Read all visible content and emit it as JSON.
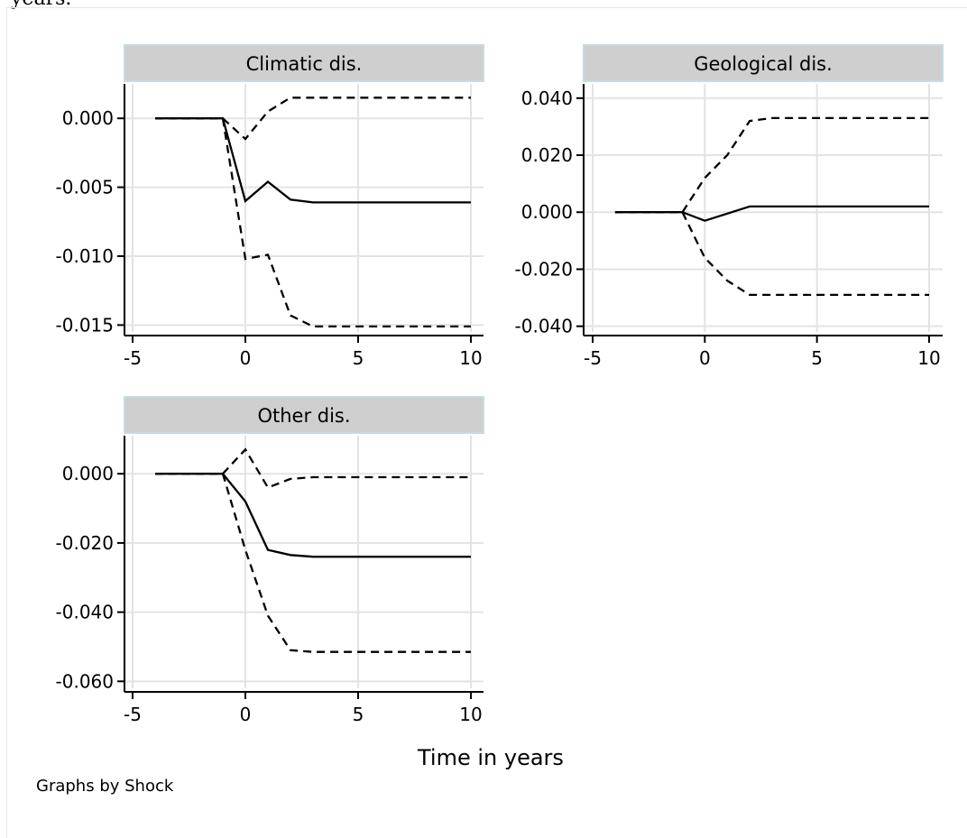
{
  "caption_fragment": "years.",
  "note": "Graphs by Shock",
  "chart_data": {
    "type": "line",
    "xlabel": "Time in years",
    "xlim": [
      -5,
      10
    ],
    "xticks": [
      -5,
      0,
      5,
      10
    ],
    "x": [
      -4,
      -3,
      -2,
      -1,
      0,
      1,
      2,
      3,
      4,
      5,
      6,
      7,
      8,
      9,
      10
    ],
    "panels": [
      {
        "title": "Climatic dis.",
        "ylim": [
          -0.0155,
          0.0025
        ],
        "yticks": [
          0.0,
          -0.005,
          -0.01,
          -0.015
        ],
        "ytick_labels": [
          "0.000",
          "-0.005",
          "-0.010",
          "-0.015"
        ],
        "series": [
          {
            "values": [
              0,
              0,
              0,
              0,
              -0.006,
              -0.0046,
              -0.0059,
              -0.0061,
              -0.0061,
              -0.0061,
              -0.0061,
              -0.0061,
              -0.0061,
              -0.0061,
              -0.0061
            ]
          },
          {
            "values": [
              0,
              0,
              0,
              0,
              -0.0015,
              0.0005,
              0.0015,
              0.0015,
              0.0015,
              0.0015,
              0.0015,
              0.0015,
              0.0015,
              0.0015,
              0.0015
            ]
          },
          {
            "values": [
              0,
              0,
              0,
              0,
              -0.0102,
              -0.0099,
              -0.0143,
              -0.0151,
              -0.0151,
              -0.0151,
              -0.0151,
              -0.0151,
              -0.0151,
              -0.0151,
              -0.0151
            ]
          }
        ]
      },
      {
        "title": "Geological dis.",
        "ylim": [
          -0.042,
          0.045
        ],
        "yticks": [
          0.04,
          0.02,
          0.0,
          -0.02,
          -0.04
        ],
        "ytick_labels": [
          "0.040",
          "0.020",
          "0.000",
          "-0.020",
          "-0.040"
        ],
        "series": [
          {
            "values": [
              0,
              0,
              0,
              0,
              -0.003,
              -0.0005,
              0.002,
              0.002,
              0.002,
              0.002,
              0.002,
              0.002,
              0.002,
              0.002,
              0.002
            ]
          },
          {
            "values": [
              0,
              0,
              0,
              0,
              0.012,
              0.02,
              0.032,
              0.033,
              0.033,
              0.033,
              0.033,
              0.033,
              0.033,
              0.033,
              0.033
            ]
          },
          {
            "values": [
              0,
              0,
              0,
              0,
              -0.016,
              -0.024,
              -0.029,
              -0.029,
              -0.029,
              -0.029,
              -0.029,
              -0.029,
              -0.029,
              -0.029,
              -0.029
            ]
          }
        ]
      },
      {
        "title": "Other dis.",
        "ylim": [
          -0.062,
          0.011
        ],
        "yticks": [
          0.0,
          -0.02,
          -0.04,
          -0.06
        ],
        "ytick_labels": [
          "0.000",
          "-0.020",
          "-0.040",
          "-0.060"
        ],
        "series": [
          {
            "values": [
              0,
              0,
              0,
              0,
              -0.008,
              -0.022,
              -0.0235,
              -0.024,
              -0.024,
              -0.024,
              -0.024,
              -0.024,
              -0.024,
              -0.024,
              -0.024
            ]
          },
          {
            "values": [
              0,
              0,
              0,
              0,
              0.007,
              -0.004,
              -0.0015,
              -0.001,
              -0.001,
              -0.001,
              -0.001,
              -0.001,
              -0.001,
              -0.001,
              -0.001
            ]
          },
          {
            "values": [
              0,
              0,
              0,
              0,
              -0.022,
              -0.041,
              -0.051,
              -0.0515,
              -0.0515,
              -0.0515,
              -0.0515,
              -0.0515,
              -0.0515,
              -0.0515,
              -0.0515
            ]
          }
        ]
      }
    ]
  }
}
